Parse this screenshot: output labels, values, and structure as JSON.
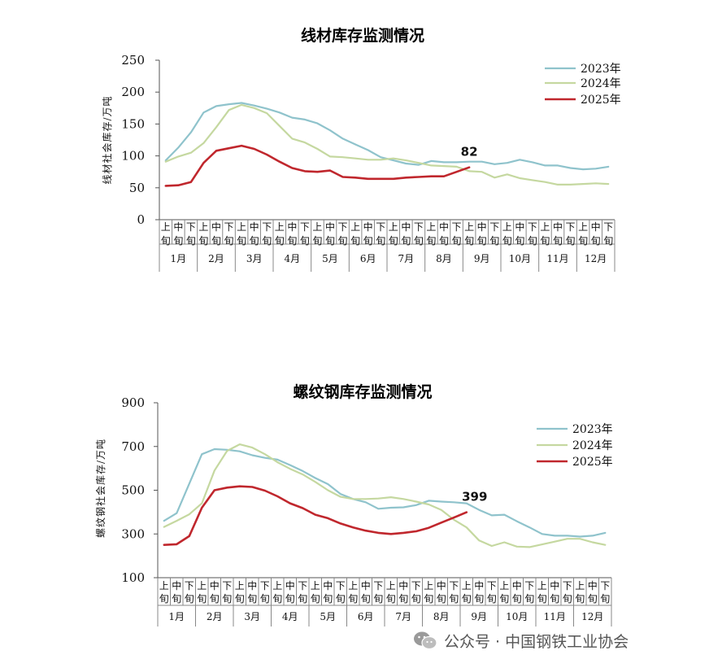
{
  "chart_data": [
    {
      "type": "line",
      "title": "线材库存监测情况",
      "ylabel": "线材社会库存/万吨",
      "xlabel": "",
      "ylim": [
        0,
        250
      ],
      "yticks": [
        0,
        50,
        100,
        150,
        200,
        250
      ],
      "grid": false,
      "legend_position": "top-right",
      "months": [
        "1月",
        "2月",
        "3月",
        "4月",
        "5月",
        "6月",
        "7月",
        "8月",
        "9月",
        "10月",
        "11月",
        "12月"
      ],
      "periods": [
        "上旬",
        "中旬",
        "下旬"
      ],
      "series": [
        {
          "name": "2023年",
          "color": "#8fc3cc",
          "values": [
            93,
            113,
            137,
            168,
            178,
            181,
            183,
            179,
            174,
            168,
            160,
            157,
            151,
            140,
            127,
            118,
            109,
            98,
            93,
            88,
            86,
            92,
            90,
            90,
            91,
            91,
            87,
            89,
            94,
            90,
            85,
            85,
            81,
            79,
            80,
            83
          ]
        },
        {
          "name": "2024年",
          "color": "#c5d8a0",
          "values": [
            91,
            99,
            105,
            120,
            145,
            172,
            180,
            175,
            167,
            147,
            127,
            121,
            111,
            99,
            98,
            96,
            94,
            94,
            96,
            93,
            89,
            85,
            84,
            83,
            76,
            75,
            66,
            71,
            65,
            62,
            59,
            55,
            55,
            56,
            57,
            56
          ]
        },
        {
          "name": "2025年",
          "color": "#c0272d",
          "values": [
            53,
            54,
            59,
            89,
            108,
            112,
            116,
            111,
            102,
            91,
            81,
            76,
            75,
            77,
            67,
            66,
            64,
            64,
            64,
            66,
            67,
            68,
            68,
            75,
            82
          ]
        }
      ],
      "annotations": [
        {
          "text": "82",
          "series": "2025年",
          "index": 24
        }
      ]
    },
    {
      "type": "line",
      "title": "螺纹钢库存监测情况",
      "ylabel": "螺纹钢社会库存/万吨",
      "xlabel": "",
      "ylim": [
        100,
        900
      ],
      "yticks": [
        100,
        300,
        500,
        700,
        900
      ],
      "grid": false,
      "legend_position": "top-right",
      "months": [
        "1月",
        "2月",
        "3月",
        "4月",
        "5月",
        "6月",
        "7月",
        "8月",
        "9月",
        "10月",
        "11月",
        "12月"
      ],
      "periods": [
        "上旬",
        "中旬",
        "下旬"
      ],
      "series": [
        {
          "name": "2023年",
          "color": "#8fc3cc",
          "values": [
            360,
            395,
            530,
            665,
            688,
            685,
            678,
            660,
            648,
            640,
            615,
            588,
            556,
            528,
            483,
            460,
            445,
            415,
            420,
            422,
            432,
            452,
            448,
            445,
            440,
            410,
            385,
            388,
            358,
            330,
            300,
            292,
            292,
            288,
            292,
            305
          ]
        },
        {
          "name": "2024年",
          "color": "#c5d8a0",
          "values": [
            332,
            360,
            390,
            440,
            590,
            680,
            710,
            695,
            665,
            628,
            598,
            572,
            538,
            500,
            470,
            460,
            460,
            462,
            468,
            460,
            448,
            435,
            410,
            365,
            330,
            270,
            245,
            262,
            242,
            240,
            252,
            265,
            278,
            278,
            262,
            250
          ]
        },
        {
          "name": "2025年",
          "color": "#c0272d",
          "values": [
            250,
            253,
            290,
            420,
            500,
            512,
            518,
            515,
            498,
            472,
            440,
            418,
            388,
            372,
            348,
            330,
            315,
            305,
            300,
            305,
            312,
            328,
            352,
            375,
            399
          ]
        }
      ],
      "annotations": [
        {
          "text": "399",
          "series": "2025年",
          "index": 24
        }
      ]
    }
  ],
  "watermark": {
    "text": "公众号 · 中国钢铁工业协会",
    "icon": "wechat-icon"
  }
}
